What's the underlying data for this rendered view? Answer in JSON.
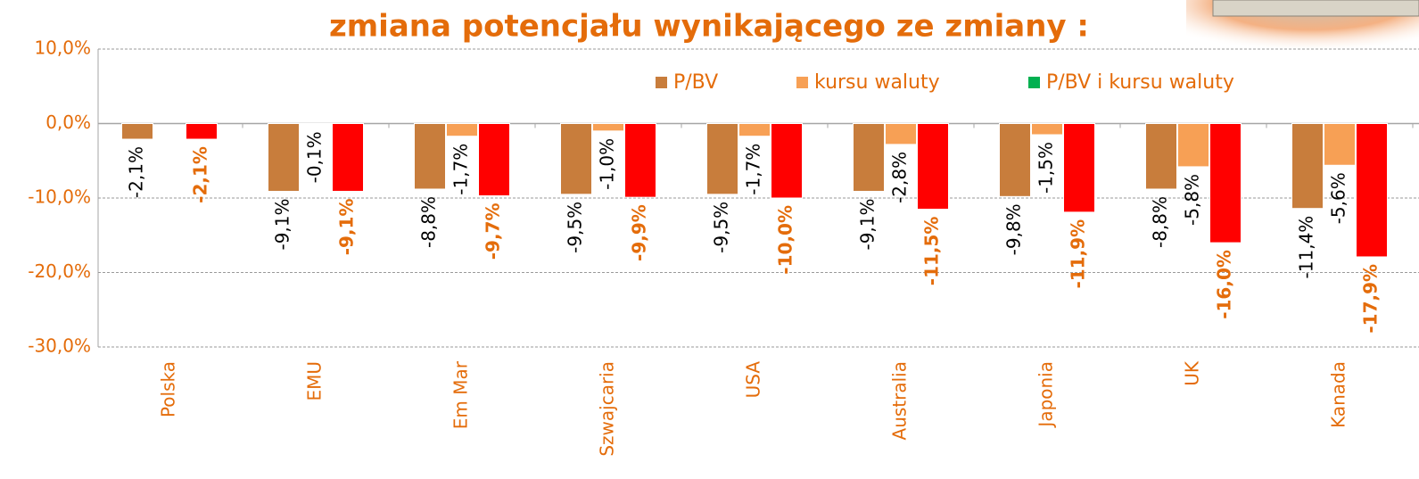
{
  "chart_data": {
    "type": "bar",
    "title": "zmiana potencjału wynikającego ze zmiany :",
    "categories": [
      "Polska",
      "EMU",
      "Em Mar",
      "Szwajcaria",
      "USA",
      "Australia",
      "Japonia",
      "UK",
      "Kanada"
    ],
    "series": [
      {
        "name": "P/BV",
        "color": "#c87d3c",
        "label_color": "#000000",
        "label_bold": false,
        "values": [
          -2.1,
          -9.1,
          -8.8,
          -9.5,
          -9.5,
          -9.1,
          -9.8,
          -8.8,
          -11.4
        ],
        "value_labels": [
          "-2,1%",
          "-9,1%",
          "-8,8%",
          "-9,5%",
          "-9,5%",
          "-9,1%",
          "-9,8%",
          "-8,8%",
          "-11,4%"
        ]
      },
      {
        "name": "kursu waluty",
        "color": "#f7a055",
        "label_color": "#000000",
        "label_bold": false,
        "values": [
          null,
          -0.1,
          -1.7,
          -1.0,
          -1.7,
          -2.8,
          -1.5,
          -5.8,
          -5.6
        ],
        "value_labels": [
          null,
          "-0,1%",
          "-1,7%",
          "-1,0%",
          "-1,7%",
          "-2,8%",
          "-1,5%",
          "-5,8%",
          "-5,6%"
        ]
      },
      {
        "name": "P/BV i kursu waluty",
        "color": "#ff0000",
        "legend_color": "#00b050",
        "label_color": "#e46c0a",
        "label_bold": true,
        "values": [
          -2.1,
          -9.1,
          -9.7,
          -9.9,
          -10.0,
          -11.5,
          -11.9,
          -16.0,
          -17.9
        ],
        "value_labels": [
          "-2,1%",
          "-9,1%",
          "-9,7%",
          "-9,9%",
          "-10,0%",
          "-11,5%",
          "-11,9%",
          "-16,0%",
          "-17,9%"
        ]
      }
    ],
    "ylim": [
      -30,
      10
    ],
    "yticks": [
      {
        "value": -30,
        "label": "-30,0%"
      },
      {
        "value": -20,
        "label": "-20,0%"
      },
      {
        "value": -10,
        "label": "-10,0%"
      },
      {
        "value": 0,
        "label": "0,0%"
      },
      {
        "value": 10,
        "label": "10,0%"
      }
    ],
    "grid": true
  }
}
